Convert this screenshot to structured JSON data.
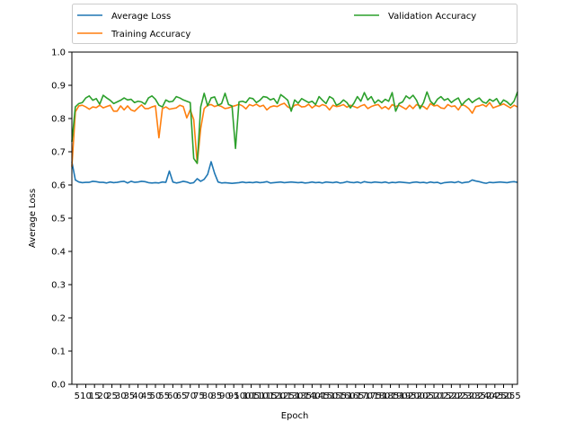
{
  "chart_data": {
    "type": "line",
    "xlabel": "Epoch",
    "ylabel": "Average Loss",
    "ylim": [
      0.0,
      1.0
    ],
    "yticks": [
      "0.0",
      "0.1",
      "0.2",
      "0.3",
      "0.4",
      "0.5",
      "0.6",
      "0.7",
      "0.8",
      "0.9",
      "1.0"
    ],
    "xlim": [
      2,
      258
    ],
    "x_tick_step": 5,
    "x_tick_start": 5,
    "legend": {
      "placement": "top",
      "columns": 2
    },
    "series": [
      {
        "name": "Average Loss",
        "color": "#1f77b4",
        "x_start": 2,
        "x_step": 2,
        "values": [
          0.67,
          0.615,
          0.609,
          0.607,
          0.608,
          0.608,
          0.611,
          0.61,
          0.608,
          0.608,
          0.606,
          0.609,
          0.607,
          0.608,
          0.61,
          0.611,
          0.606,
          0.611,
          0.608,
          0.609,
          0.611,
          0.61,
          0.607,
          0.606,
          0.607,
          0.606,
          0.609,
          0.608,
          0.642,
          0.609,
          0.606,
          0.608,
          0.611,
          0.609,
          0.605,
          0.607,
          0.619,
          0.611,
          0.617,
          0.632,
          0.67,
          0.635,
          0.609,
          0.606,
          0.607,
          0.606,
          0.605,
          0.606,
          0.607,
          0.609,
          0.607,
          0.608,
          0.607,
          0.609,
          0.607,
          0.608,
          0.61,
          0.606,
          0.607,
          0.608,
          0.609,
          0.607,
          0.608,
          0.609,
          0.608,
          0.607,
          0.608,
          0.606,
          0.607,
          0.609,
          0.607,
          0.608,
          0.606,
          0.609,
          0.608,
          0.607,
          0.609,
          0.606,
          0.607,
          0.61,
          0.608,
          0.607,
          0.609,
          0.606,
          0.61,
          0.608,
          0.607,
          0.609,
          0.608,
          0.607,
          0.609,
          0.606,
          0.608,
          0.607,
          0.609,
          0.608,
          0.607,
          0.606,
          0.608,
          0.609,
          0.607,
          0.608,
          0.606,
          0.609,
          0.607,
          0.608,
          0.604,
          0.607,
          0.608,
          0.609,
          0.607,
          0.61,
          0.606,
          0.608,
          0.609,
          0.615,
          0.612,
          0.61,
          0.607,
          0.605,
          0.608,
          0.607,
          0.608,
          0.609,
          0.608,
          0.607,
          0.609,
          0.61,
          0.608
        ]
      },
      {
        "name": "Training Accuracy",
        "color": "#ff7f0e",
        "x_start": 2,
        "x_step": 2,
        "values": [
          0.655,
          0.82,
          0.838,
          0.84,
          0.835,
          0.828,
          0.835,
          0.833,
          0.84,
          0.832,
          0.836,
          0.84,
          0.822,
          0.822,
          0.838,
          0.826,
          0.838,
          0.826,
          0.822,
          0.832,
          0.841,
          0.83,
          0.83,
          0.835,
          0.838,
          0.742,
          0.83,
          0.835,
          0.828,
          0.83,
          0.832,
          0.84,
          0.836,
          0.802,
          0.826,
          0.797,
          0.665,
          0.77,
          0.83,
          0.84,
          0.842,
          0.836,
          0.84,
          0.836,
          0.83,
          0.832,
          0.836,
          0.839,
          0.843,
          0.838,
          0.829,
          0.842,
          0.838,
          0.843,
          0.836,
          0.84,
          0.826,
          0.835,
          0.838,
          0.836,
          0.842,
          0.846,
          0.835,
          0.83,
          0.84,
          0.842,
          0.835,
          0.836,
          0.843,
          0.832,
          0.84,
          0.836,
          0.842,
          0.838,
          0.826,
          0.84,
          0.836,
          0.838,
          0.842,
          0.834,
          0.84,
          0.836,
          0.832,
          0.838,
          0.842,
          0.83,
          0.836,
          0.84,
          0.842,
          0.83,
          0.836,
          0.828,
          0.842,
          0.836,
          0.84,
          0.834,
          0.828,
          0.84,
          0.83,
          0.842,
          0.838,
          0.836,
          0.828,
          0.845,
          0.838,
          0.84,
          0.832,
          0.83,
          0.842,
          0.836,
          0.838,
          0.826,
          0.842,
          0.838,
          0.83,
          0.816,
          0.836,
          0.838,
          0.842,
          0.836,
          0.848,
          0.832,
          0.836,
          0.84,
          0.844,
          0.838,
          0.832,
          0.84,
          0.835
        ]
      },
      {
        "name": "Validation Accuracy",
        "color": "#2ca02c",
        "x_start": 2,
        "x_step": 2,
        "values": [
          0.73,
          0.835,
          0.845,
          0.848,
          0.862,
          0.868,
          0.855,
          0.86,
          0.843,
          0.87,
          0.862,
          0.855,
          0.845,
          0.85,
          0.855,
          0.862,
          0.856,
          0.858,
          0.848,
          0.852,
          0.85,
          0.843,
          0.862,
          0.868,
          0.858,
          0.84,
          0.835,
          0.856,
          0.85,
          0.852,
          0.866,
          0.862,
          0.856,
          0.852,
          0.848,
          0.68,
          0.665,
          0.835,
          0.876,
          0.838,
          0.862,
          0.865,
          0.84,
          0.845,
          0.876,
          0.842,
          0.838,
          0.71,
          0.85,
          0.852,
          0.848,
          0.862,
          0.86,
          0.848,
          0.855,
          0.866,
          0.864,
          0.856,
          0.86,
          0.845,
          0.872,
          0.864,
          0.855,
          0.822,
          0.856,
          0.846,
          0.86,
          0.854,
          0.848,
          0.852,
          0.842,
          0.866,
          0.855,
          0.845,
          0.866,
          0.86,
          0.84,
          0.845,
          0.856,
          0.848,
          0.832,
          0.846,
          0.866,
          0.852,
          0.878,
          0.856,
          0.866,
          0.846,
          0.856,
          0.848,
          0.858,
          0.852,
          0.878,
          0.822,
          0.845,
          0.85,
          0.868,
          0.86,
          0.87,
          0.855,
          0.83,
          0.848,
          0.88,
          0.852,
          0.842,
          0.858,
          0.866,
          0.855,
          0.86,
          0.848,
          0.856,
          0.862,
          0.84,
          0.852,
          0.86,
          0.848,
          0.856,
          0.862,
          0.85,
          0.846,
          0.858,
          0.852,
          0.86,
          0.842,
          0.856,
          0.85,
          0.84,
          0.852,
          0.88
        ]
      }
    ]
  }
}
